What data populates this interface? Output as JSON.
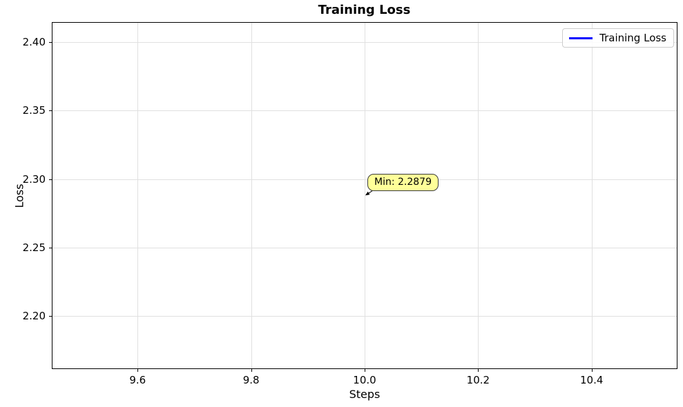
{
  "chart_data": {
    "type": "line",
    "title": "Training Loss",
    "xlabel": "Steps",
    "ylabel": "Loss",
    "series": [
      {
        "name": "Training Loss",
        "color": "#0000ff",
        "x": [
          10.0
        ],
        "y": [
          2.2879
        ]
      }
    ],
    "xlim": [
      9.45,
      10.55
    ],
    "ylim": [
      2.162,
      2.414
    ],
    "xticks": [
      9.6,
      9.8,
      10.0,
      10.2,
      10.4
    ],
    "xtick_labels": [
      "9.6",
      "9.8",
      "10.0",
      "10.2",
      "10.4"
    ],
    "yticks": [
      2.2,
      2.25,
      2.3,
      2.35,
      2.4
    ],
    "ytick_labels": [
      "2.20",
      "2.25",
      "2.30",
      "2.35",
      "2.40"
    ],
    "grid": true,
    "grid_color": "#e0e0e0",
    "legend_position": "upper right",
    "annotation": {
      "text": "Min: 2.2879",
      "x": 10.0,
      "y": 2.2879,
      "background_color": "#ffff99",
      "arrow_color": "#000000"
    }
  }
}
